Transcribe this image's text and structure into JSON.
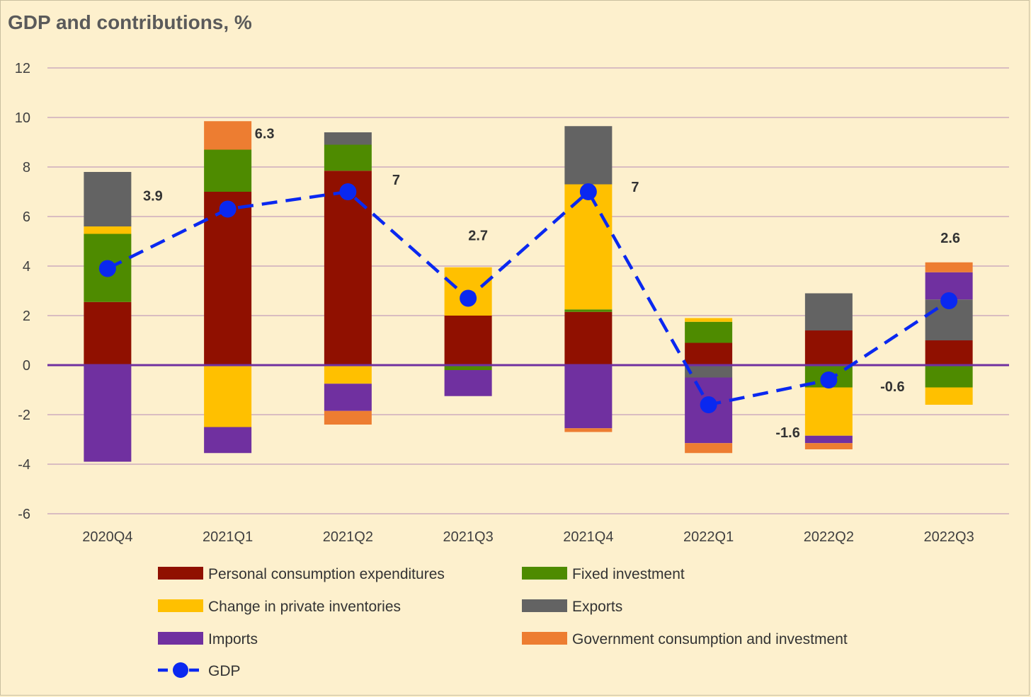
{
  "chart_data": {
    "type": "bar",
    "stacked": true,
    "title": "GDP and contributions, %",
    "xlabel": "",
    "ylabel": "",
    "ylim": [
      -6,
      12
    ],
    "yticks": [
      -6,
      -4,
      -2,
      0,
      2,
      4,
      6,
      8,
      10,
      12
    ],
    "grid": true,
    "legend_position": "bottom",
    "categories": [
      "2020Q4",
      "2021Q1",
      "2021Q2",
      "2021Q3",
      "2021Q4",
      "2022Q1",
      "2022Q2",
      "2022Q3"
    ],
    "series": [
      {
        "name": "Personal consumption expenditures",
        "color": "#901000",
        "values": [
          2.55,
          7.0,
          7.85,
          2.0,
          2.15,
          0.9,
          1.4,
          1.0
        ]
      },
      {
        "name": "Fixed investment",
        "color": "#4e8b00",
        "values": [
          2.75,
          1.7,
          1.05,
          -0.2,
          0.1,
          0.85,
          -0.9,
          -0.9
        ]
      },
      {
        "name": "Change in private inventories",
        "color": "#ffc000",
        "values": [
          0.3,
          -2.5,
          -0.75,
          1.95,
          5.05,
          0.15,
          -1.95,
          -0.7
        ]
      },
      {
        "name": "Exports",
        "color": "#636363",
        "values": [
          2.2,
          0.0,
          0.5,
          0.0,
          2.35,
          -0.5,
          1.5,
          1.65
        ]
      },
      {
        "name": "Imports",
        "color": "#7030a0",
        "values": [
          -3.9,
          -1.05,
          -1.1,
          -1.05,
          -2.55,
          -2.65,
          -0.3,
          1.1
        ]
      },
      {
        "name": "Government consumption and investment",
        "color": "#ed7d31",
        "values": [
          0.0,
          1.15,
          -0.55,
          0.0,
          -0.15,
          -0.4,
          -0.25,
          0.4
        ]
      }
    ],
    "line_series": {
      "name": "GDP",
      "color": "#0a28f0",
      "style": "dashed",
      "marker": "circle",
      "values": [
        3.9,
        6.3,
        7.0,
        2.7,
        7.0,
        -1.6,
        -0.6,
        2.6
      ]
    },
    "data_labels": [
      "3.9",
      "6.3",
      "7",
      "2.7",
      "7",
      "-1.6",
      "-0.6",
      "2.6"
    ]
  }
}
